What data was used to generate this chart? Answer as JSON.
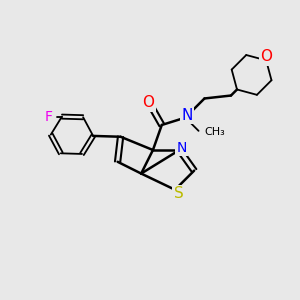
{
  "bg_color": "#e8e8e8",
  "bond_color": "#000000",
  "bond_width": 1.8,
  "atom_colors": {
    "F": "#ee00ee",
    "N": "#0000ff",
    "O": "#ff0000",
    "S": "#bbbb00",
    "C": "#000000"
  },
  "font_size": 10,
  "figsize": [
    3.0,
    3.0
  ],
  "dpi": 100
}
